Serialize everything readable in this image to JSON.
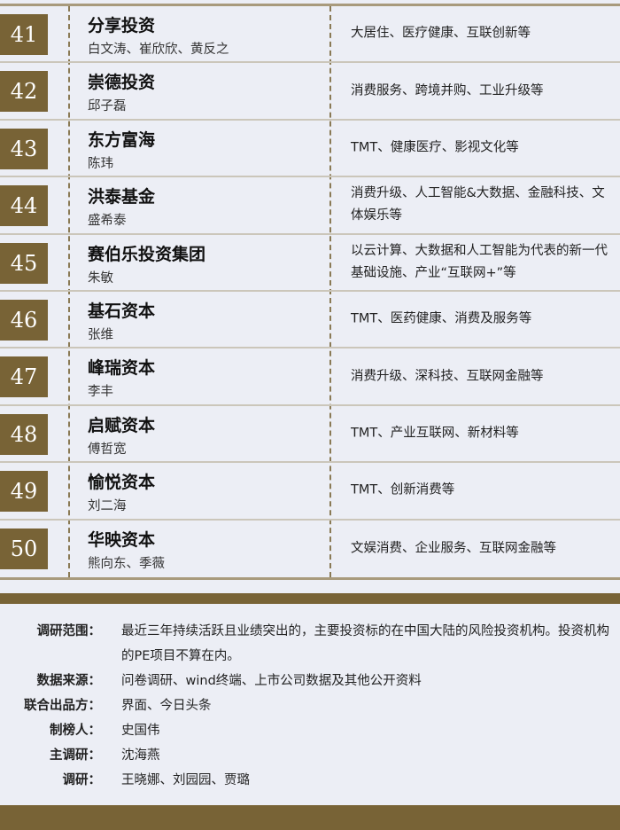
{
  "rows": [
    {
      "rank": "41",
      "name": "分享投资",
      "people": "白文涛、崔欣欣、黄反之",
      "focus": "大居住、医疗健康、互联创新等"
    },
    {
      "rank": "42",
      "name": "崇德投资",
      "people": "邱子磊",
      "focus": "消费服务、跨境并购、工业升级等"
    },
    {
      "rank": "43",
      "name": "东方富海",
      "people": "陈玮",
      "focus": "TMT、健康医疗、影视文化等"
    },
    {
      "rank": "44",
      "name": "洪泰基金",
      "people": "盛希泰",
      "focus": "消费升级、人工智能&大数据、金融科技、文体娱乐等"
    },
    {
      "rank": "45",
      "name": "赛伯乐投资集团",
      "people": "朱敏",
      "focus": "以云计算、大数据和人工智能为代表的新一代基础设施、产业“互联网+”等"
    },
    {
      "rank": "46",
      "name": "基石资本",
      "people": "张维",
      "focus": "TMT、医药健康、消费及服务等"
    },
    {
      "rank": "47",
      "name": "峰瑞资本",
      "people": "李丰",
      "focus": "消费升级、深科技、互联网金融等"
    },
    {
      "rank": "48",
      "name": "启赋资本",
      "people": "傅哲宽",
      "focus": "TMT、产业互联网、新材料等"
    },
    {
      "rank": "49",
      "name": "愉悦资本",
      "people": "刘二海",
      "focus": "TMT、创新消费等"
    },
    {
      "rank": "50",
      "name": "华映资本",
      "people": "熊向东、季薇",
      "focus": "文娱消费、企业服务、互联网金融等"
    }
  ],
  "notes": [
    {
      "label": "调研范围：",
      "value": "最近三年持续活跃且业绩突出的，主要投资标的在中国大陆的风险投资机构。投资机构的PE项目不算在内。"
    },
    {
      "label": "数据来源：",
      "value": "问卷调研、wind终端、上市公司数据及其他公开资料"
    },
    {
      "label": "联合出品方：",
      "value": "界面、今日头条"
    },
    {
      "label": "制榜人：",
      "value": "史国伟"
    },
    {
      "label": "主调研：",
      "value": "沈海燕"
    },
    {
      "label": "调研：",
      "value": "王晓娜、刘园园、贾璐"
    }
  ],
  "colors": {
    "accent": "#786336",
    "background": "#eceef5"
  }
}
